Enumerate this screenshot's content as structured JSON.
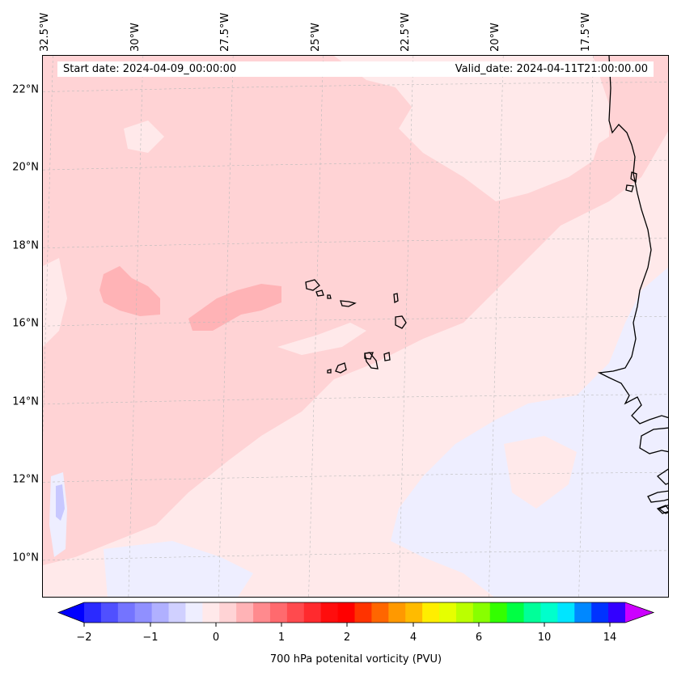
{
  "header": {
    "start_date": "Start date: 2024-04-09_00:00:00",
    "valid_date": "Valid_date: 2024-04-11T21:00:00.00"
  },
  "map": {
    "extent": {
      "lon_min": -32.6,
      "lon_max": -15.2,
      "lat_min": 8.9,
      "lat_max": 22.8
    },
    "longitude_ticks": [
      {
        "value": -32.5,
        "label": "32.5°W"
      },
      {
        "value": -30,
        "label": "30°W"
      },
      {
        "value": -27.5,
        "label": "27.5°W"
      },
      {
        "value": -25,
        "label": "25°W"
      },
      {
        "value": -22.5,
        "label": "22.5°W"
      },
      {
        "value": -20,
        "label": "20°W"
      },
      {
        "value": -17.5,
        "label": "17.5°W"
      }
    ],
    "latitude_ticks": [
      {
        "value": 22,
        "label": "22°N"
      },
      {
        "value": 20,
        "label": "20°N"
      },
      {
        "value": 18,
        "label": "18°N"
      },
      {
        "value": 16,
        "label": "16°N"
      },
      {
        "value": 14,
        "label": "14°N"
      },
      {
        "value": 12,
        "label": "12°N"
      },
      {
        "value": 10,
        "label": "10°N"
      }
    ],
    "gridlines": true,
    "field_colors": {
      "background": "#ffe9ea",
      "band": "#ffd3d5",
      "maximum": "#ffb3b6",
      "minimum": "#eeeeff",
      "deep_minimum": "#c8c8ff"
    }
  },
  "colorbar": {
    "label": "700 hPa potenital vorticity (PVU)",
    "tick_labels": [
      {
        "value": -2,
        "label": "−2"
      },
      {
        "value": -1,
        "label": "−1"
      },
      {
        "value": 0,
        "label": "0"
      },
      {
        "value": 1,
        "label": "1"
      },
      {
        "value": 2,
        "label": "2"
      },
      {
        "value": 4,
        "label": "4"
      },
      {
        "value": 6,
        "label": "6"
      },
      {
        "value": 10,
        "label": "10"
      },
      {
        "value": 14,
        "label": "14"
      }
    ],
    "colors": [
      "#0000ff",
      "#2a2aff",
      "#5050ff",
      "#7474ff",
      "#9090ff",
      "#b0b0ff",
      "#d0d0ff",
      "#eeeeff",
      "#ffe9ea",
      "#ffd3d5",
      "#ffb3b6",
      "#ff8a8e",
      "#ff6a6e",
      "#ff4a4e",
      "#ff2a2e",
      "#ff0d0d",
      "#ff0000",
      "#ff3300",
      "#ff6600",
      "#ff9900",
      "#ffbb00",
      "#ffee00",
      "#e6ff00",
      "#bbff00",
      "#88ff00",
      "#33ff00",
      "#00ff44",
      "#00ff99",
      "#00ffcc",
      "#00e5ff",
      "#0088ff",
      "#0033ff",
      "#3300ff",
      "#9900ff"
    ],
    "under_color": "#0000ff",
    "over_color": "#cc00ff"
  }
}
